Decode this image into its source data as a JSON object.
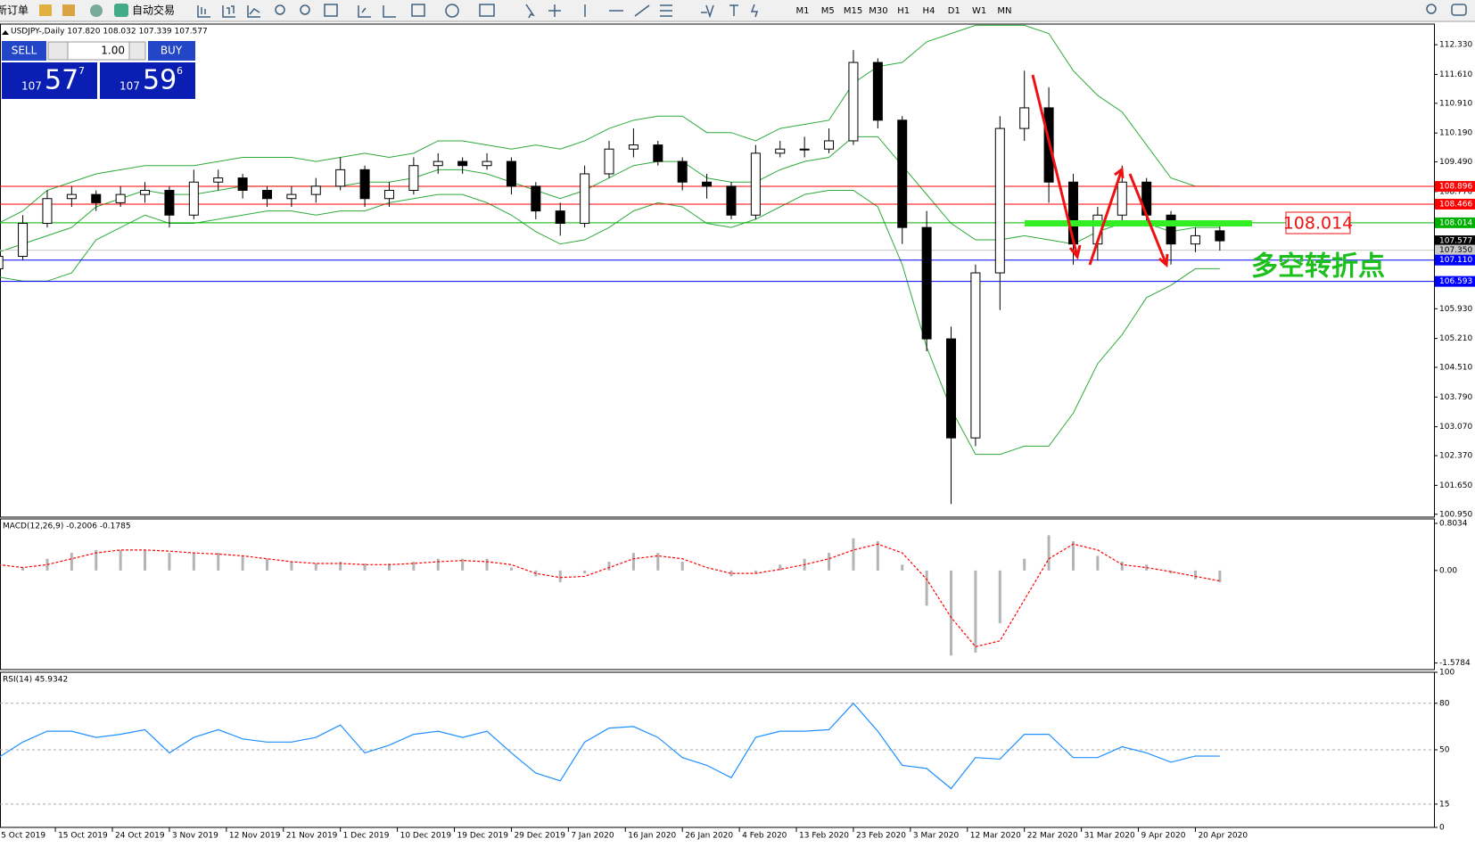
{
  "toolbar": {
    "new_order": "新订单",
    "auto_trade": "自动交易",
    "timeframes": [
      "M1",
      "M5",
      "M15",
      "M30",
      "H1",
      "H4",
      "D1",
      "W1",
      "MN"
    ]
  },
  "trade_panel": {
    "sell_label": "SELL",
    "buy_label": "BUY",
    "lots": "1.00",
    "sell_price": {
      "big": "107",
      "pips": "57",
      "fraction": "7"
    },
    "buy_price": {
      "big": "107",
      "pips": "59",
      "fraction": "6"
    }
  },
  "chart_data": [
    {
      "type": "candlestick",
      "title": "USDJPY-,Daily 107.820 108.032 107.339 107.577",
      "x": [
        -7,
        -4,
        -1,
        2,
        5,
        8,
        11,
        14,
        17,
        20,
        23,
        26,
        29,
        32,
        35,
        38,
        41,
        44,
        47,
        50,
        53,
        56,
        59,
        62,
        65,
        68,
        71,
        74,
        77,
        80,
        83,
        86,
        89,
        92,
        95,
        98,
        101,
        104,
        107,
        110,
        113,
        116,
        119,
        122,
        125,
        128,
        131,
        134,
        137,
        140,
        143
      ],
      "open": [
        106.9,
        107.2,
        108.0,
        108.6,
        108.7,
        108.5,
        108.7,
        108.8,
        108.2,
        109.0,
        109.1,
        108.8,
        108.6,
        108.7,
        108.9,
        109.3,
        108.6,
        108.8,
        109.4,
        109.5,
        109.4,
        109.5,
        108.9,
        108.3,
        108.0,
        109.2,
        109.8,
        109.9,
        109.5,
        109.0,
        108.9,
        108.2,
        109.7,
        109.8,
        109.8,
        110.0,
        111.9,
        110.5,
        107.9,
        105.2,
        102.8,
        106.8,
        110.3,
        110.8,
        109.0,
        107.5,
        108.2,
        109.0,
        108.2,
        107.5,
        107.82
      ],
      "high": [
        107.4,
        108.2,
        108.8,
        108.9,
        108.8,
        108.9,
        109.0,
        108.9,
        109.3,
        109.3,
        109.2,
        108.9,
        108.9,
        109.1,
        109.6,
        109.4,
        109.0,
        109.6,
        109.7,
        109.6,
        109.7,
        109.6,
        109.0,
        108.5,
        109.4,
        110.0,
        110.3,
        110.0,
        109.6,
        109.2,
        109.0,
        109.9,
        110.0,
        110.1,
        110.3,
        112.2,
        112.0,
        110.6,
        108.3,
        105.5,
        107.0,
        110.6,
        111.7,
        111.3,
        109.2,
        108.4,
        109.4,
        109.1,
        108.3,
        107.9,
        108.032
      ],
      "low": [
        106.7,
        107.1,
        107.9,
        108.4,
        108.3,
        108.4,
        108.5,
        107.9,
        108.1,
        108.8,
        108.6,
        108.4,
        108.4,
        108.5,
        108.8,
        108.4,
        108.4,
        108.7,
        109.2,
        109.2,
        109.3,
        108.7,
        108.1,
        107.7,
        107.9,
        109.1,
        109.6,
        109.4,
        108.8,
        108.6,
        108.1,
        108.1,
        109.6,
        109.6,
        109.7,
        109.9,
        110.3,
        107.5,
        104.9,
        101.2,
        102.6,
        105.9,
        110.0,
        108.5,
        107.0,
        107.1,
        108.0,
        108.0,
        107.0,
        107.3,
        107.339
      ],
      "close": [
        107.2,
        108.0,
        108.6,
        108.7,
        108.5,
        108.7,
        108.8,
        108.2,
        109.0,
        109.1,
        108.8,
        108.6,
        108.7,
        108.9,
        109.3,
        108.6,
        108.8,
        109.4,
        109.5,
        109.4,
        109.5,
        108.9,
        108.3,
        108.0,
        109.2,
        109.8,
        109.9,
        109.5,
        109.0,
        108.9,
        108.2,
        109.7,
        109.8,
        109.8,
        110.0,
        111.9,
        110.5,
        107.9,
        105.2,
        102.8,
        106.8,
        110.3,
        110.8,
        109.0,
        107.5,
        108.2,
        109.0,
        108.2,
        107.5,
        107.7,
        107.577
      ],
      "bands": {
        "color": "#2faa3a",
        "upper": [
          108.0,
          108.3,
          108.8,
          109.0,
          109.2,
          109.3,
          109.4,
          109.4,
          109.4,
          109.5,
          109.6,
          109.6,
          109.6,
          109.5,
          109.6,
          109.7,
          109.6,
          109.7,
          110.0,
          110.0,
          109.9,
          109.8,
          109.9,
          109.8,
          110.0,
          110.3,
          110.5,
          110.6,
          110.6,
          110.2,
          110.2,
          110.0,
          110.3,
          110.4,
          110.5,
          111.4,
          111.8,
          111.9,
          112.4,
          112.6,
          112.8,
          112.8,
          112.8,
          112.6,
          111.7,
          111.1,
          110.7,
          109.9,
          109.1,
          108.9,
          108.9
        ],
        "middle": [
          107.3,
          107.5,
          107.7,
          107.9,
          108.4,
          108.6,
          108.8,
          108.7,
          108.7,
          108.8,
          108.9,
          108.9,
          108.9,
          108.9,
          108.9,
          109.0,
          109.0,
          109.1,
          109.3,
          109.3,
          109.2,
          109.0,
          108.8,
          108.6,
          108.8,
          109.1,
          109.4,
          109.5,
          109.5,
          109.1,
          109.0,
          109.0,
          109.3,
          109.5,
          109.6,
          110.1,
          110.1,
          109.4,
          108.7,
          108.0,
          107.6,
          107.6,
          107.7,
          107.6,
          107.5,
          107.8,
          108.0,
          108.0,
          107.8,
          107.9,
          107.9
        ],
        "lower": [
          106.7,
          106.6,
          106.6,
          106.8,
          107.6,
          107.9,
          108.2,
          108.0,
          108.0,
          108.1,
          108.2,
          108.3,
          108.3,
          108.2,
          108.3,
          108.3,
          108.5,
          108.6,
          108.7,
          108.7,
          108.5,
          108.2,
          107.8,
          107.5,
          107.6,
          107.9,
          108.3,
          108.5,
          108.4,
          108.0,
          107.9,
          108.1,
          108.4,
          108.7,
          108.8,
          108.8,
          108.4,
          107.0,
          105.0,
          103.5,
          102.4,
          102.4,
          102.6,
          102.6,
          103.4,
          104.6,
          105.3,
          106.2,
          106.5,
          106.9,
          106.9
        ]
      },
      "levels": [
        {
          "value": 108.896,
          "color": "#ff0000",
          "label_color": "#ffffff",
          "line": true
        },
        {
          "value": 108.466,
          "color": "#ff0000",
          "label_color": "#ffffff",
          "line": true
        },
        {
          "value": 108.014,
          "color": "#00b000",
          "label_color": "#ffffff",
          "line": true
        },
        {
          "value": 107.577,
          "color": "#000000",
          "label_color": "#ffffff",
          "line": false
        },
        {
          "value": 107.35,
          "label": "107.350",
          "color": "#c8c8c8",
          "label_color": "#000000",
          "line": true
        },
        {
          "value": 107.11,
          "label": "107.110",
          "color": "#0000ff",
          "label_color": "#ffffff",
          "line": true
        },
        {
          "value": 106.593,
          "color": "#0000ff",
          "label_color": "#ffffff",
          "line": true
        }
      ],
      "annotations": {
        "level_note": "108.014",
        "turning_point": "多空转折点"
      },
      "xlim": [
        -6.8,
        169.3
      ],
      "ylim": [
        100.88,
        112.83
      ],
      "yticks": [
        {
          "value": 112.33,
          "label": "112.330"
        },
        {
          "value": 111.61,
          "label": "111.610"
        },
        {
          "value": 110.91,
          "label": "110.910"
        },
        {
          "value": 110.19,
          "label": "110.190"
        },
        {
          "value": 109.49,
          "label": "109.490"
        },
        {
          "value": 108.77,
          "label": "108.770"
        },
        {
          "value": 105.93,
          "label": "105.930"
        },
        {
          "value": 105.21,
          "label": "105.210"
        },
        {
          "value": 104.51,
          "label": "104.510"
        },
        {
          "value": 103.79,
          "label": "103.790"
        },
        {
          "value": 103.07,
          "label": "103.070"
        },
        {
          "value": 102.37,
          "label": "102.370"
        },
        {
          "value": 101.65,
          "label": "101.650"
        },
        {
          "value": 100.95,
          "label": "100.950"
        }
      ]
    },
    {
      "type": "macd",
      "title": "MACD(12,26,9) -0.2006 -0.1785",
      "x": [
        -7,
        -4,
        -1,
        2,
        5,
        8,
        11,
        14,
        17,
        20,
        23,
        26,
        29,
        32,
        35,
        38,
        41,
        44,
        47,
        50,
        53,
        56,
        59,
        62,
        65,
        68,
        71,
        74,
        77,
        80,
        83,
        86,
        89,
        92,
        95,
        98,
        101,
        104,
        107,
        110,
        113,
        116,
        119,
        122,
        125,
        128,
        131,
        134,
        137,
        140,
        143
      ],
      "series": [
        {
          "kind": "histogram",
          "color": "#b4b4b4",
          "values": [
            -0.05,
            0.05,
            0.2,
            0.3,
            0.35,
            0.35,
            0.35,
            0.3,
            0.3,
            0.3,
            0.25,
            0.2,
            0.15,
            0.12,
            0.15,
            0.12,
            0.12,
            0.15,
            0.2,
            0.2,
            0.2,
            0.05,
            -0.1,
            -0.2,
            -0.05,
            0.15,
            0.3,
            0.3,
            0.15,
            0.0,
            -0.1,
            -0.05,
            0.1,
            0.2,
            0.3,
            0.55,
            0.5,
            0.1,
            -0.6,
            -1.45,
            -1.4,
            -0.9,
            0.2,
            0.6,
            0.5,
            0.25,
            0.15,
            0.1,
            -0.05,
            -0.15,
            -0.2006
          ]
        },
        {
          "kind": "signal",
          "color": "#ff0000",
          "values": [
            0.1,
            0.05,
            0.1,
            0.2,
            0.3,
            0.35,
            0.35,
            0.33,
            0.3,
            0.28,
            0.25,
            0.2,
            0.15,
            0.12,
            0.12,
            0.1,
            0.1,
            0.12,
            0.15,
            0.17,
            0.15,
            0.1,
            -0.05,
            -0.12,
            -0.1,
            0.05,
            0.2,
            0.25,
            0.2,
            0.05,
            -0.05,
            -0.05,
            0.02,
            0.1,
            0.2,
            0.35,
            0.45,
            0.3,
            -0.15,
            -0.8,
            -1.3,
            -1.2,
            -0.5,
            0.2,
            0.45,
            0.35,
            0.1,
            0.05,
            -0.02,
            -0.1,
            -0.1785
          ]
        }
      ],
      "xlim": [
        -6.8,
        169.3
      ],
      "ylim": [
        -1.69,
        0.88
      ],
      "yticks": [
        0.8034,
        {
          "value": 0,
          "label": "0.00"
        },
        -1.5784
      ]
    },
    {
      "type": "rsi",
      "title": "RSI(14) 45.9342",
      "color": "#1e90ff",
      "grid": "dashed",
      "x": [
        -7,
        -4,
        -1,
        2,
        5,
        8,
        11,
        14,
        17,
        20,
        23,
        26,
        29,
        32,
        35,
        38,
        41,
        44,
        47,
        50,
        53,
        56,
        59,
        62,
        65,
        68,
        71,
        74,
        77,
        80,
        83,
        86,
        89,
        92,
        95,
        98,
        101,
        104,
        107,
        110,
        113,
        116,
        119,
        122,
        125,
        128,
        131,
        134,
        137,
        140,
        143
      ],
      "values": [
        45,
        55,
        62,
        62,
        58,
        60,
        63,
        48,
        58,
        63,
        57,
        55,
        55,
        58,
        66,
        48,
        53,
        60,
        62,
        58,
        62,
        48,
        35,
        30,
        55,
        64,
        65,
        58,
        45,
        40,
        32,
        58,
        62,
        62,
        63,
        80,
        62,
        40,
        38,
        25,
        45,
        44,
        60,
        60,
        45,
        45,
        52,
        48,
        42,
        46,
        45.9342
      ],
      "xlim": [
        -6.8,
        169.3
      ],
      "ylim": [
        0,
        100
      ],
      "yticks": [
        100,
        80,
        50,
        15,
        0
      ],
      "xticks": [
        {
          "value": -7,
          "label": "5 Oct 2019"
        },
        {
          "value": 0,
          "label": "15 Oct 2019"
        },
        {
          "value": 7,
          "label": "24 Oct 2019"
        },
        {
          "value": 14,
          "label": "3 Nov 2019"
        },
        {
          "value": 21,
          "label": "12 Nov 2019"
        },
        {
          "value": 28,
          "label": "21 Nov 2019"
        },
        {
          "value": 35,
          "label": "1 Dec 2019"
        },
        {
          "value": 42,
          "label": "10 Dec 2019"
        },
        {
          "value": 49,
          "label": "19 Dec 2019"
        },
        {
          "value": 56,
          "label": "29 Dec 2019"
        },
        {
          "value": 63,
          "label": "7 Jan 2020"
        },
        {
          "value": 70,
          "label": "16 Jan 2020"
        },
        {
          "value": 77,
          "label": "26 Jan 2020"
        },
        {
          "value": 84,
          "label": "4 Feb 2020"
        },
        {
          "value": 91,
          "label": "13 Feb 2020"
        },
        {
          "value": 98,
          "label": "23 Feb 2020"
        },
        {
          "value": 105,
          "label": "3 Mar 2020"
        },
        {
          "value": 112,
          "label": "12 Mar 2020"
        },
        {
          "value": 119,
          "label": "22 Mar 2020"
        },
        {
          "value": 126,
          "label": "31 Mar 2020"
        },
        {
          "value": 133,
          "label": "9 Apr 2020"
        },
        {
          "value": 140,
          "label": "20 Apr 2020"
        }
      ]
    }
  ]
}
